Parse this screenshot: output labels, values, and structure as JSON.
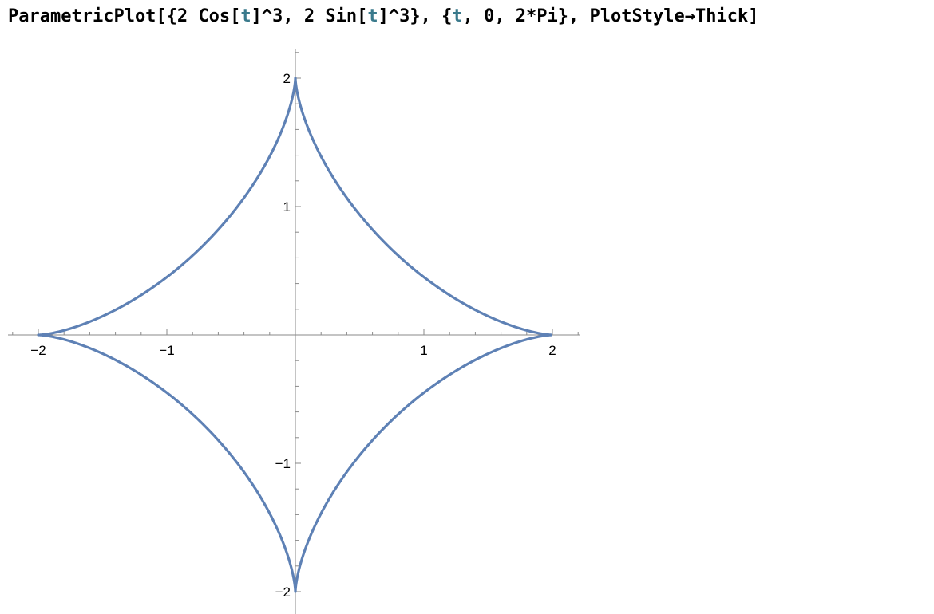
{
  "input": {
    "tokens": [
      {
        "text": "ParametricPlot[{2 Cos[",
        "kind": "plain"
      },
      {
        "text": "t",
        "kind": "var"
      },
      {
        "text": "]^3, 2 Sin[",
        "kind": "plain"
      },
      {
        "text": "t",
        "kind": "var"
      },
      {
        "text": "]^3}, {",
        "kind": "plain"
      },
      {
        "text": "t",
        "kind": "var"
      },
      {
        "text": ", 0, 2*Pi}, PlotStyle→Thick]",
        "kind": "plain"
      }
    ]
  },
  "colors": {
    "curve": "#5e81b5",
    "axis": "#8a8a8a",
    "variable": "#3a7a8c"
  },
  "chart_data": {
    "type": "line",
    "title": "",
    "xlabel": "",
    "ylabel": "",
    "curve": "astroid: x = 2 cos(t)^3, y = 2 sin(t)^3, t from 0 to 2π",
    "xlim": [
      -2.2,
      2.2
    ],
    "ylim": [
      -2.2,
      2.2
    ],
    "xticks": [
      {
        "value": -2,
        "label": "−2"
      },
      {
        "value": -1,
        "label": "−1"
      },
      {
        "value": 1,
        "label": "1"
      },
      {
        "value": 2,
        "label": "2"
      }
    ],
    "yticks": [
      {
        "value": 2,
        "label": "2"
      },
      {
        "value": 1,
        "label": "1"
      },
      {
        "value": -1,
        "label": "−1"
      },
      {
        "value": -2,
        "label": "−2"
      }
    ],
    "series": [
      {
        "points": [
          [
            2.0,
            0.0
          ],
          [
            1.94,
            0.0
          ],
          [
            1.773,
            0.011
          ],
          [
            1.52,
            0.055
          ],
          [
            1.21,
            0.15
          ],
          [
            0.88,
            0.32
          ],
          [
            0.56,
            0.56
          ],
          [
            0.32,
            0.88
          ],
          [
            0.15,
            1.21
          ],
          [
            0.055,
            1.52
          ],
          [
            0.011,
            1.773
          ],
          [
            0.0,
            2.0
          ],
          [
            -0.011,
            1.773
          ],
          [
            -0.055,
            1.52
          ],
          [
            -0.15,
            1.21
          ],
          [
            -0.32,
            0.88
          ],
          [
            -0.56,
            0.56
          ],
          [
            -0.88,
            0.32
          ],
          [
            -1.21,
            0.15
          ],
          [
            -1.52,
            0.055
          ],
          [
            -1.773,
            0.011
          ],
          [
            -2.0,
            0.0
          ],
          [
            -1.773,
            -0.011
          ],
          [
            -1.52,
            -0.055
          ],
          [
            -1.21,
            -0.15
          ],
          [
            -0.88,
            -0.32
          ],
          [
            -0.56,
            -0.56
          ],
          [
            -0.32,
            -0.88
          ],
          [
            -0.15,
            -1.21
          ],
          [
            -0.055,
            -1.52
          ],
          [
            -0.011,
            -1.773
          ],
          [
            0.0,
            -2.0
          ],
          [
            0.011,
            -1.773
          ],
          [
            0.055,
            -1.52
          ],
          [
            0.15,
            -1.21
          ],
          [
            0.32,
            -0.88
          ],
          [
            0.56,
            -0.56
          ],
          [
            0.88,
            -0.32
          ],
          [
            1.21,
            -0.15
          ],
          [
            1.52,
            -0.055
          ],
          [
            1.773,
            -0.011
          ],
          [
            2.0,
            0.0
          ]
        ]
      }
    ],
    "grid": false,
    "legend": "none"
  }
}
